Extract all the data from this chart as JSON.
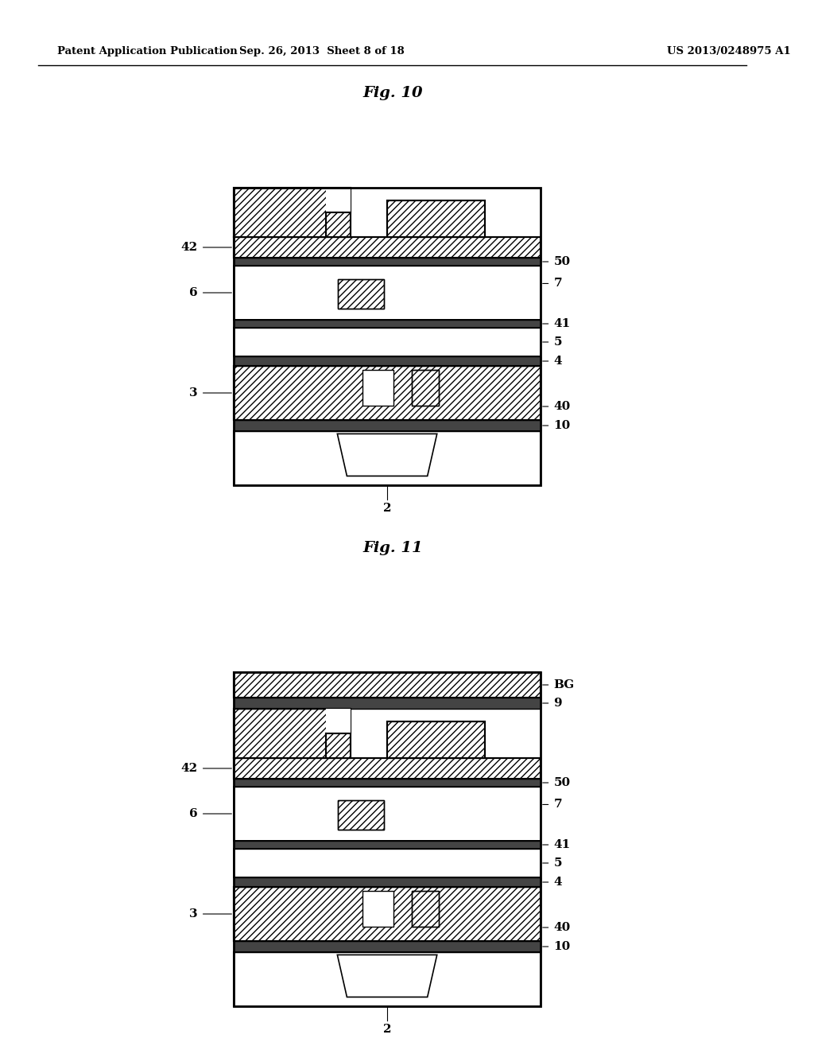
{
  "background_color": "#ffffff",
  "header_left": "Patent Application Publication",
  "header_center": "Sep. 26, 2013  Sheet 8 of 18",
  "header_right": "US 2013/0248975 A1",
  "fig10_title": "Fig. 10",
  "fig11_title": "Fig. 11"
}
